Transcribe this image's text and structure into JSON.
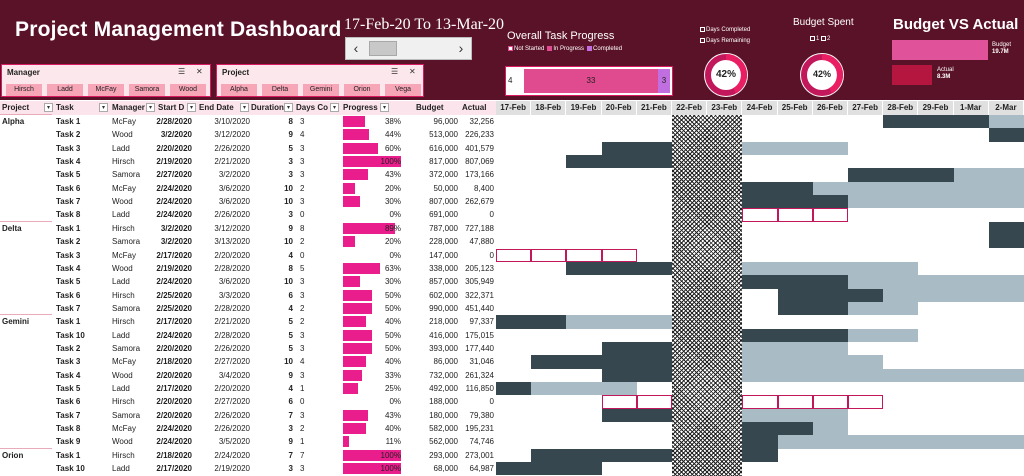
{
  "header": {
    "title": "Project Management Dashboard",
    "date_range": "17-Feb-20 To 13-Mar-20",
    "scroll_left": "‹",
    "scroll_right": "›"
  },
  "task_progress": {
    "title": "Overall Task Progress",
    "legend": [
      "Not Started",
      "In Progress",
      "Completed"
    ],
    "not_started": 4,
    "in_progress": 33,
    "completed": 3,
    "colors": {
      "not_started": "#ffffff",
      "in_progress": "#e04a8e",
      "completed": "#c06ee0"
    }
  },
  "days_chart": {
    "legend": [
      "Days Completed",
      "Days Remaining"
    ],
    "value": "42%",
    "fraction": 0.42
  },
  "budget_spent": {
    "title": "Budget Spent",
    "legend": [
      "1",
      "2"
    ],
    "value": "42%",
    "fraction": 0.42
  },
  "budget_vs_actual": {
    "title": "Budget VS Actual",
    "budget_label": "Budget",
    "budget_value": "19.7M",
    "actual_label": "Actual",
    "actual_value": "8.3M",
    "budget_num": 19.7,
    "actual_num": 8.3
  },
  "slicers": {
    "manager": {
      "title": "Manager",
      "items": [
        "Hirsch",
        "Ladd",
        "McFay",
        "Samora",
        "Wood"
      ]
    },
    "project": {
      "title": "Project",
      "items": [
        "Alpha",
        "Delta",
        "Gemini",
        "Orion",
        "Vega"
      ]
    }
  },
  "columns": [
    "Project",
    "Task",
    "Manager",
    "Start D",
    "End Date",
    "Duration",
    "Days Co",
    "Progress",
    "Budget",
    "Actual"
  ],
  "gantt_dates": [
    "17-Feb",
    "18-Feb",
    "19-Feb",
    "20-Feb",
    "21-Feb",
    "22-Feb",
    "23-Feb",
    "24-Feb",
    "25-Feb",
    "26-Feb",
    "27-Feb",
    "28-Feb",
    "29-Feb",
    "1-Mar",
    "2-Mar"
  ],
  "colors": {
    "header_bg": "#5a1228",
    "accent_pink": "#e91e8c",
    "gantt_done": "#37474f",
    "gantt_remaining": "#a9bcc6",
    "weekend_hatch": "#000000"
  },
  "rows": [
    {
      "project": "Alpha",
      "task": "Task 1",
      "manager": "McFay",
      "start": "2/28/2020",
      "end": "3/10/2020",
      "duration": "8",
      "days": "3",
      "progress": "38%",
      "p": 0.38,
      "budget": "96,000",
      "actual": "32,256"
    },
    {
      "project": "",
      "task": "Task 2",
      "manager": "Wood",
      "start": "3/2/2020",
      "end": "3/12/2020",
      "duration": "9",
      "days": "4",
      "progress": "44%",
      "p": 0.44,
      "budget": "513,000",
      "actual": "226,233"
    },
    {
      "project": "",
      "task": "Task 3",
      "manager": "Ladd",
      "start": "2/20/2020",
      "end": "2/26/2020",
      "duration": "5",
      "days": "3",
      "progress": "60%",
      "p": 0.6,
      "budget": "616,000",
      "actual": "401,579"
    },
    {
      "project": "",
      "task": "Task 4",
      "manager": "Hirsch",
      "start": "2/19/2020",
      "end": "2/21/2020",
      "duration": "3",
      "days": "3",
      "progress": "100%",
      "p": 1.0,
      "budget": "817,000",
      "actual": "807,069"
    },
    {
      "project": "",
      "task": "Task 5",
      "manager": "Samora",
      "start": "2/27/2020",
      "end": "3/2/2020",
      "duration": "3",
      "days": "3",
      "progress": "43%",
      "p": 0.43,
      "budget": "372,000",
      "actual": "173,166"
    },
    {
      "project": "",
      "task": "Task 6",
      "manager": "McFay",
      "start": "2/24/2020",
      "end": "3/6/2020",
      "duration": "10",
      "days": "2",
      "progress": "20%",
      "p": 0.2,
      "budget": "50,000",
      "actual": "8,400"
    },
    {
      "project": "",
      "task": "Task 7",
      "manager": "Wood",
      "start": "2/24/2020",
      "end": "3/6/2020",
      "duration": "10",
      "days": "3",
      "progress": "30%",
      "p": 0.3,
      "budget": "807,000",
      "actual": "262,679"
    },
    {
      "project": "",
      "task": "Task 8",
      "manager": "Ladd",
      "start": "2/24/2020",
      "end": "2/26/2020",
      "duration": "3",
      "days": "0",
      "progress": "0%",
      "p": 0.0,
      "budget": "691,000",
      "actual": "0"
    },
    {
      "project": "Delta",
      "task": "Task 1",
      "manager": "Hirsch",
      "start": "3/2/2020",
      "end": "3/12/2020",
      "duration": "9",
      "days": "8",
      "progress": "89%",
      "p": 0.89,
      "budget": "787,000",
      "actual": "727,188"
    },
    {
      "project": "",
      "task": "Task 2",
      "manager": "Samora",
      "start": "3/2/2020",
      "end": "3/13/2020",
      "duration": "10",
      "days": "2",
      "progress": "20%",
      "p": 0.2,
      "budget": "228,000",
      "actual": "47,880"
    },
    {
      "project": "",
      "task": "Task 3",
      "manager": "McFay",
      "start": "2/17/2020",
      "end": "2/20/2020",
      "duration": "4",
      "days": "0",
      "progress": "0%",
      "p": 0.0,
      "budget": "147,000",
      "actual": "0"
    },
    {
      "project": "",
      "task": "Task 4",
      "manager": "Wood",
      "start": "2/19/2020",
      "end": "2/28/2020",
      "duration": "8",
      "days": "5",
      "progress": "63%",
      "p": 0.63,
      "budget": "338,000",
      "actual": "205,123"
    },
    {
      "project": "",
      "task": "Task 5",
      "manager": "Ladd",
      "start": "2/24/2020",
      "end": "3/6/2020",
      "duration": "10",
      "days": "3",
      "progress": "30%",
      "p": 0.3,
      "budget": "857,000",
      "actual": "305,949"
    },
    {
      "project": "",
      "task": "Task 6",
      "manager": "Hirsch",
      "start": "2/25/2020",
      "end": "3/3/2020",
      "duration": "6",
      "days": "3",
      "progress": "50%",
      "p": 0.5,
      "budget": "602,000",
      "actual": "322,371"
    },
    {
      "project": "",
      "task": "Task 7",
      "manager": "Samora",
      "start": "2/25/2020",
      "end": "2/28/2020",
      "duration": "4",
      "days": "2",
      "progress": "50%",
      "p": 0.5,
      "budget": "990,000",
      "actual": "451,440"
    },
    {
      "project": "Gemini",
      "task": "Task 1",
      "manager": "Hirsch",
      "start": "2/17/2020",
      "end": "2/21/2020",
      "duration": "5",
      "days": "2",
      "progress": "40%",
      "p": 0.4,
      "budget": "218,000",
      "actual": "97,337"
    },
    {
      "project": "",
      "task": "Task 10",
      "manager": "Ladd",
      "start": "2/24/2020",
      "end": "2/28/2020",
      "duration": "5",
      "days": "3",
      "progress": "50%",
      "p": 0.5,
      "budget": "416,000",
      "actual": "175,015"
    },
    {
      "project": "",
      "task": "Task 2",
      "manager": "Samora",
      "start": "2/20/2020",
      "end": "2/26/2020",
      "duration": "5",
      "days": "3",
      "progress": "50%",
      "p": 0.5,
      "budget": "393,000",
      "actual": "177,440"
    },
    {
      "project": "",
      "task": "Task 3",
      "manager": "McFay",
      "start": "2/18/2020",
      "end": "2/27/2020",
      "duration": "10",
      "days": "4",
      "progress": "40%",
      "p": 0.4,
      "budget": "86,000",
      "actual": "31,046"
    },
    {
      "project": "",
      "task": "Task 4",
      "manager": "Wood",
      "start": "2/20/2020",
      "end": "3/4/2020",
      "duration": "9",
      "days": "3",
      "progress": "33%",
      "p": 0.33,
      "budget": "732,000",
      "actual": "261,324"
    },
    {
      "project": "",
      "task": "Task 5",
      "manager": "Ladd",
      "start": "2/17/2020",
      "end": "2/20/2020",
      "duration": "4",
      "days": "1",
      "progress": "25%",
      "p": 0.25,
      "budget": "492,000",
      "actual": "116,850"
    },
    {
      "project": "",
      "task": "Task 6",
      "manager": "Hirsch",
      "start": "2/20/2020",
      "end": "2/27/2020",
      "duration": "6",
      "days": "0",
      "progress": "0%",
      "p": 0.0,
      "budget": "188,000",
      "actual": "0"
    },
    {
      "project": "",
      "task": "Task 7",
      "manager": "Samora",
      "start": "2/20/2020",
      "end": "2/26/2020",
      "duration": "7",
      "days": "3",
      "progress": "43%",
      "p": 0.43,
      "budget": "180,000",
      "actual": "79,380"
    },
    {
      "project": "",
      "task": "Task 8",
      "manager": "McFay",
      "start": "2/24/2020",
      "end": "2/26/2020",
      "duration": "3",
      "days": "2",
      "progress": "40%",
      "p": 0.4,
      "budget": "582,000",
      "actual": "195,231"
    },
    {
      "project": "",
      "task": "Task 9",
      "manager": "Wood",
      "start": "2/24/2020",
      "end": "3/5/2020",
      "duration": "9",
      "days": "1",
      "progress": "11%",
      "p": 0.11,
      "budget": "562,000",
      "actual": "74,746"
    },
    {
      "project": "Orion",
      "task": "Task 1",
      "manager": "Hirsch",
      "start": "2/18/2020",
      "end": "2/24/2020",
      "duration": "7",
      "days": "7",
      "progress": "100%",
      "p": 1.0,
      "budget": "293,000",
      "actual": "273,001"
    },
    {
      "project": "",
      "task": "Task 10",
      "manager": "Ladd",
      "start": "2/17/2020",
      "end": "2/19/2020",
      "duration": "3",
      "days": "3",
      "progress": "100%",
      "p": 1.0,
      "budget": "68,000",
      "actual": "64,987"
    }
  ]
}
